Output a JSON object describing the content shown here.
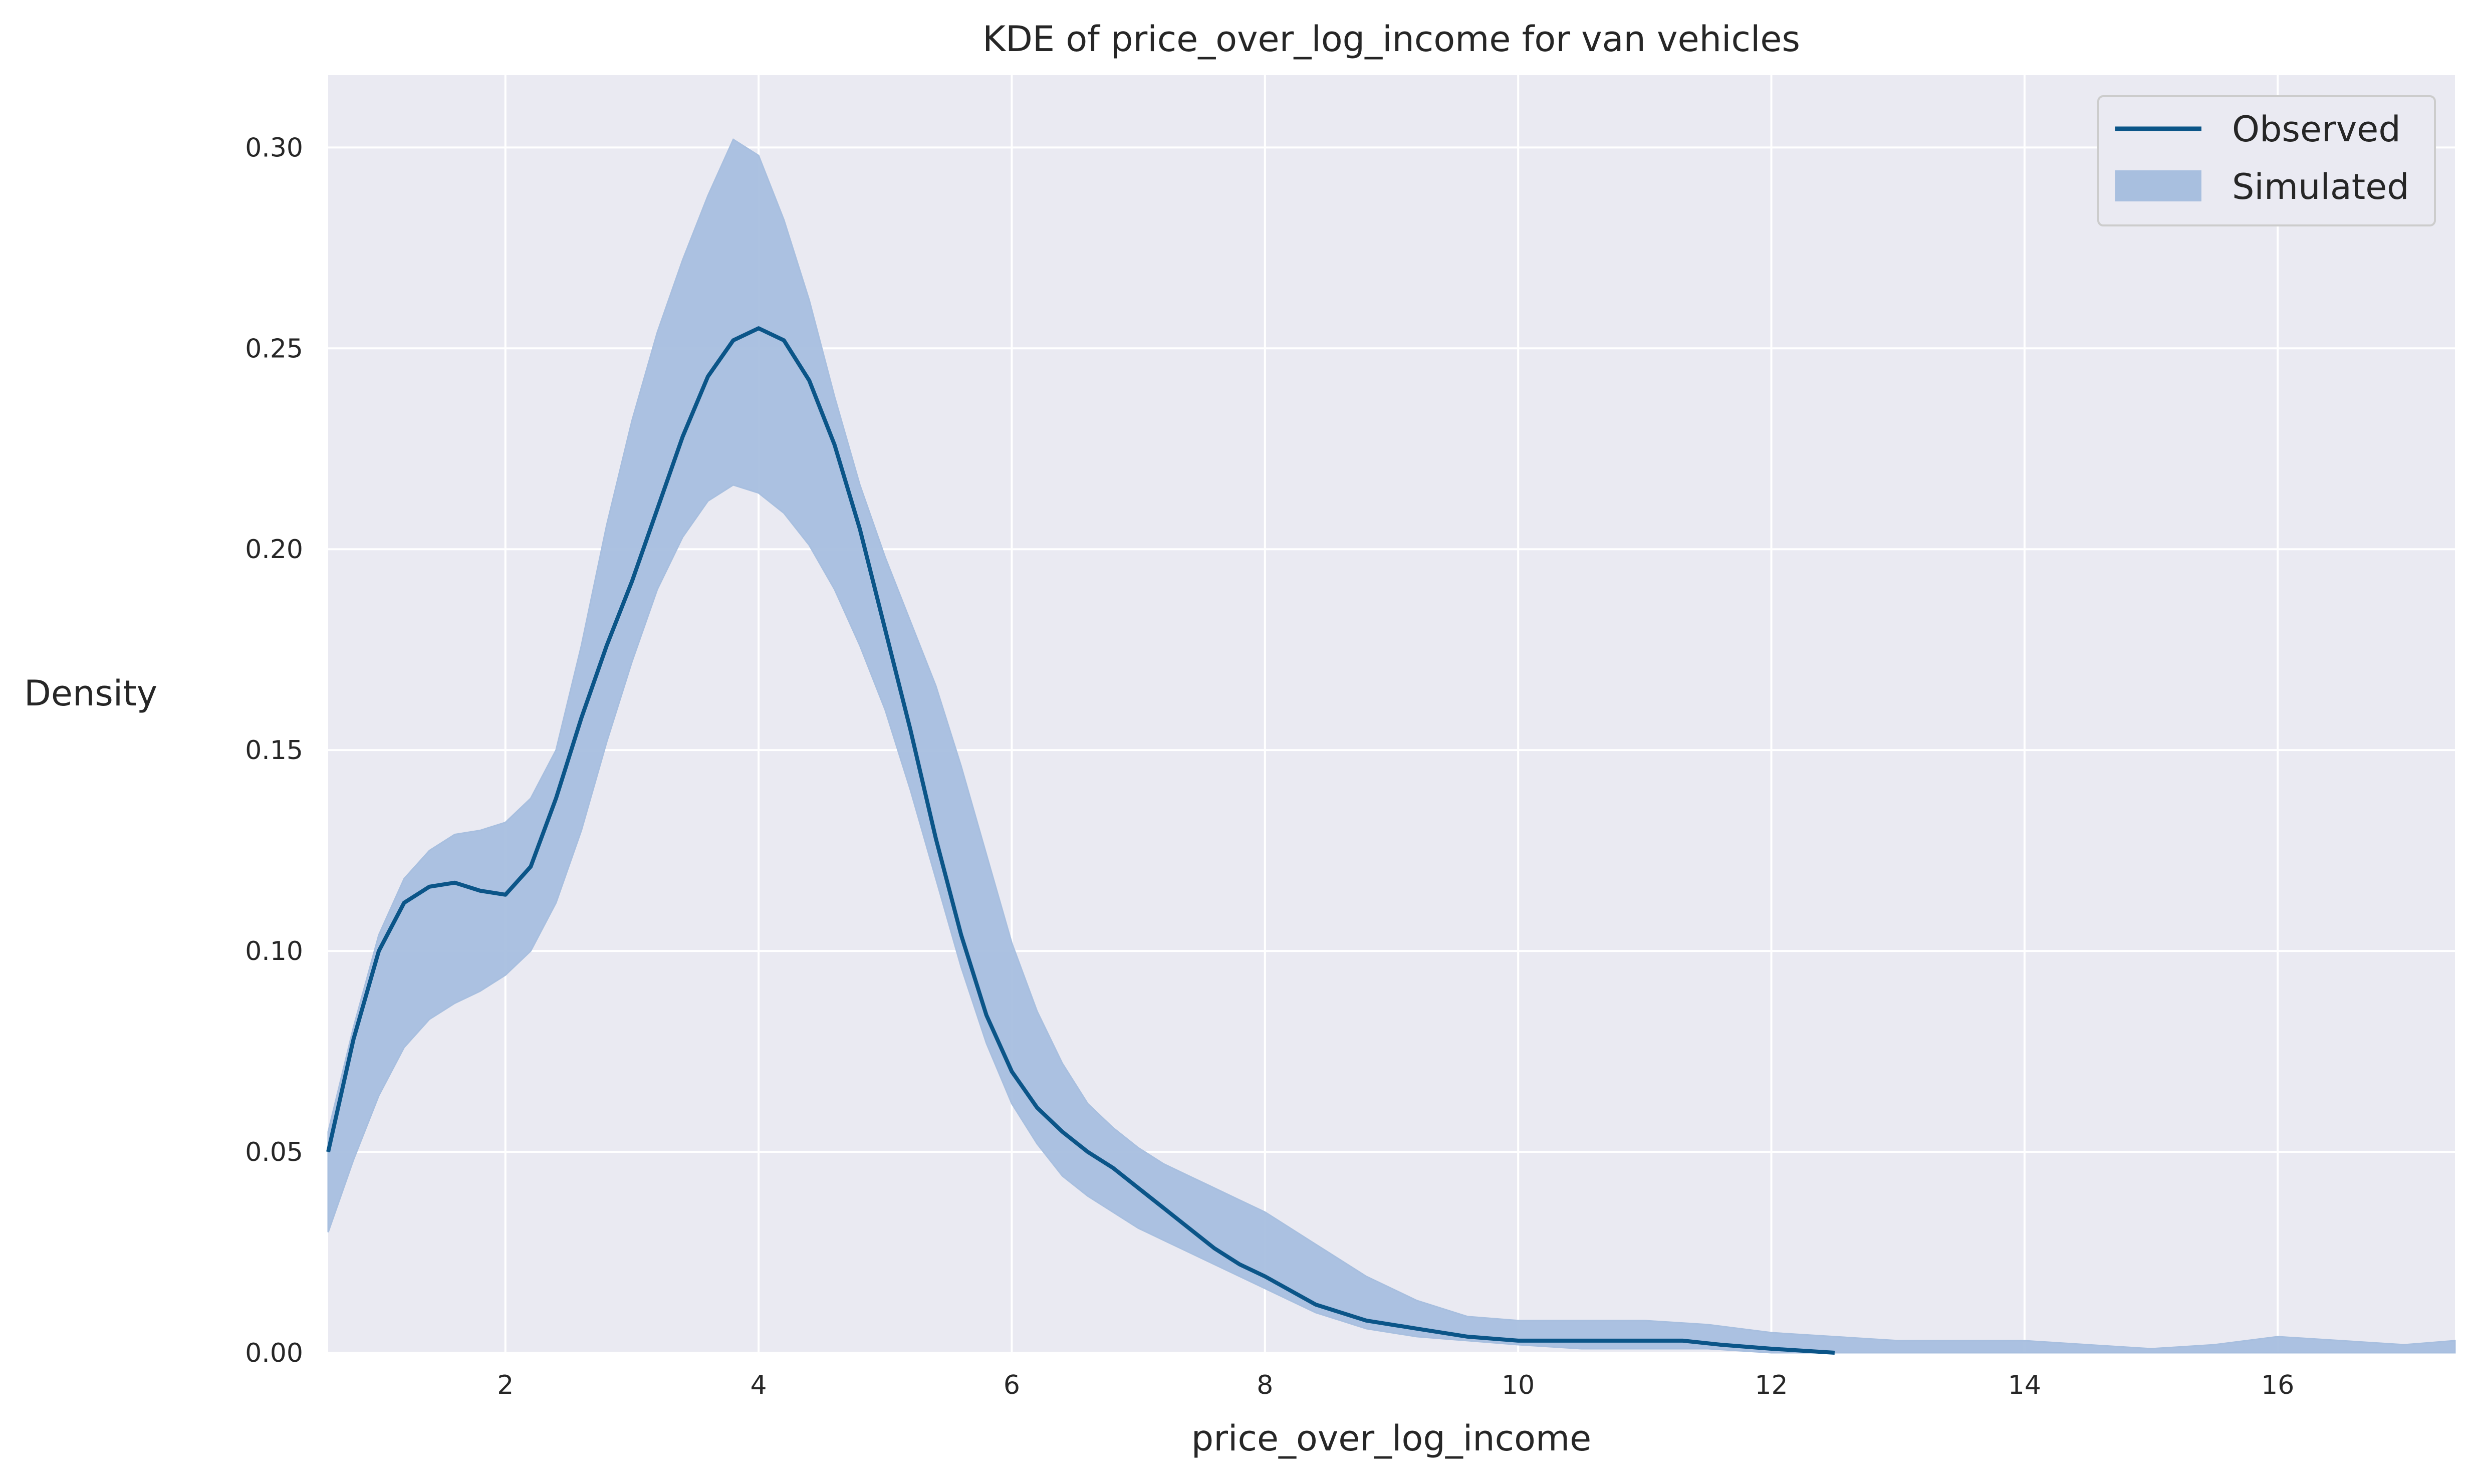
{
  "chart_data": {
    "type": "line",
    "title": "KDE of price_over_log_income for van vehicles",
    "xlabel": "price_over_log_income",
    "ylabel": "Density",
    "xlim": [
      0.6,
      17.4
    ],
    "ylim": [
      0.0,
      0.318
    ],
    "xticks": [
      2,
      4,
      6,
      8,
      10,
      12,
      14,
      16
    ],
    "yticks": [
      0.0,
      0.05,
      0.1,
      0.15,
      0.2,
      0.25,
      0.3
    ],
    "ytick_labels": [
      "0.00",
      "0.05",
      "0.10",
      "0.15",
      "0.20",
      "0.25",
      "0.30"
    ],
    "grid": true,
    "legend_position": "top-right",
    "colors": {
      "background": "#EAEAF2",
      "grid": "#FFFFFF",
      "observed": "#0B5588",
      "simulated": "#A8BFDF"
    },
    "series": [
      {
        "name": "Observed",
        "style": "line",
        "x": [
          0.6,
          0.8,
          1.0,
          1.2,
          1.4,
          1.6,
          1.8,
          2.0,
          2.2,
          2.4,
          2.6,
          2.8,
          3.0,
          3.2,
          3.4,
          3.6,
          3.8,
          4.0,
          4.2,
          4.4,
          4.6,
          4.8,
          5.0,
          5.2,
          5.4,
          5.6,
          5.8,
          6.0,
          6.2,
          6.4,
          6.6,
          6.8,
          7.0,
          7.2,
          7.4,
          7.6,
          7.8,
          8.0,
          8.4,
          8.8,
          9.2,
          9.6,
          10.0,
          10.5,
          11.0,
          11.3,
          11.6,
          12.0,
          12.5
        ],
        "y": [
          0.05,
          0.078,
          0.1,
          0.112,
          0.116,
          0.117,
          0.115,
          0.114,
          0.121,
          0.138,
          0.158,
          0.176,
          0.192,
          0.21,
          0.228,
          0.243,
          0.252,
          0.255,
          0.252,
          0.242,
          0.226,
          0.205,
          0.18,
          0.155,
          0.128,
          0.104,
          0.084,
          0.07,
          0.061,
          0.055,
          0.05,
          0.046,
          0.041,
          0.036,
          0.031,
          0.026,
          0.022,
          0.019,
          0.012,
          0.008,
          0.006,
          0.004,
          0.003,
          0.003,
          0.003,
          0.003,
          0.002,
          0.001,
          0.0
        ]
      },
      {
        "name": "Simulated",
        "style": "band",
        "x": [
          0.6,
          0.8,
          1.0,
          1.2,
          1.4,
          1.6,
          1.8,
          2.0,
          2.2,
          2.4,
          2.6,
          2.8,
          3.0,
          3.2,
          3.4,
          3.6,
          3.8,
          4.0,
          4.2,
          4.4,
          4.6,
          4.8,
          5.0,
          5.2,
          5.4,
          5.6,
          5.8,
          6.0,
          6.2,
          6.4,
          6.6,
          6.8,
          7.0,
          7.2,
          7.4,
          7.6,
          7.8,
          8.0,
          8.4,
          8.8,
          9.2,
          9.6,
          10.0,
          10.5,
          11.0,
          11.5,
          12.0,
          12.5,
          13.0,
          13.5,
          14.0,
          14.5,
          15.0,
          15.5,
          16.0,
          16.5,
          17.0,
          17.4
        ],
        "lower": [
          0.03,
          0.048,
          0.064,
          0.076,
          0.083,
          0.087,
          0.09,
          0.094,
          0.1,
          0.112,
          0.13,
          0.152,
          0.172,
          0.19,
          0.203,
          0.212,
          0.216,
          0.214,
          0.209,
          0.201,
          0.19,
          0.176,
          0.16,
          0.14,
          0.118,
          0.096,
          0.077,
          0.062,
          0.052,
          0.044,
          0.039,
          0.035,
          0.031,
          0.028,
          0.025,
          0.022,
          0.019,
          0.016,
          0.01,
          0.006,
          0.004,
          0.003,
          0.002,
          0.001,
          0.001,
          0.001,
          0.0,
          0.0,
          0.0,
          0.0,
          0.0,
          0.0,
          0.0,
          0.0,
          0.0,
          0.0,
          0.0,
          0.0
        ],
        "upper": [
          0.055,
          0.081,
          0.104,
          0.118,
          0.125,
          0.129,
          0.13,
          0.132,
          0.138,
          0.15,
          0.176,
          0.206,
          0.232,
          0.254,
          0.272,
          0.288,
          0.302,
          0.298,
          0.282,
          0.262,
          0.238,
          0.216,
          0.198,
          0.182,
          0.166,
          0.146,
          0.124,
          0.102,
          0.085,
          0.072,
          0.062,
          0.056,
          0.051,
          0.047,
          0.044,
          0.041,
          0.038,
          0.035,
          0.027,
          0.019,
          0.013,
          0.009,
          0.008,
          0.008,
          0.008,
          0.007,
          0.005,
          0.004,
          0.003,
          0.003,
          0.003,
          0.002,
          0.001,
          0.002,
          0.004,
          0.003,
          0.002,
          0.003
        ]
      }
    ]
  }
}
